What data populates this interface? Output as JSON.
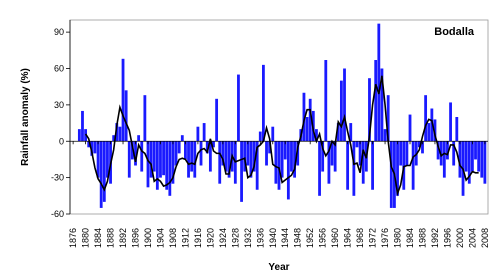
{
  "chart_data": {
    "type": "bar",
    "title": "Bodalla",
    "x_label": "Year",
    "y_label": "Rainfall anomaly (%)",
    "xlim": [
      1875,
      2009
    ],
    "ylim": [
      -60,
      100
    ],
    "xticks": [
      1876,
      1880,
      1884,
      1888,
      1892,
      1896,
      1900,
      1904,
      1908,
      1912,
      1916,
      1920,
      1924,
      1928,
      1932,
      1936,
      1940,
      1944,
      1948,
      1952,
      1956,
      1960,
      1964,
      1968,
      1972,
      1976,
      1980,
      1984,
      1988,
      1992,
      1996,
      2000,
      2004,
      2008
    ],
    "yticks": [
      -60,
      -30,
      0,
      30,
      60,
      90
    ],
    "x": [
      1878,
      1879,
      1880,
      1881,
      1882,
      1883,
      1884,
      1885,
      1886,
      1887,
      1888,
      1889,
      1890,
      1891,
      1892,
      1893,
      1894,
      1895,
      1896,
      1897,
      1898,
      1899,
      1900,
      1901,
      1902,
      1903,
      1904,
      1905,
      1906,
      1907,
      1908,
      1909,
      1910,
      1911,
      1912,
      1913,
      1914,
      1915,
      1916,
      1917,
      1918,
      1919,
      1920,
      1921,
      1922,
      1923,
      1924,
      1925,
      1926,
      1927,
      1928,
      1929,
      1930,
      1931,
      1932,
      1933,
      1934,
      1935,
      1936,
      1937,
      1938,
      1939,
      1940,
      1941,
      1942,
      1943,
      1944,
      1945,
      1946,
      1947,
      1948,
      1949,
      1950,
      1951,
      1952,
      1953,
      1954,
      1955,
      1956,
      1957,
      1958,
      1959,
      1960,
      1961,
      1962,
      1963,
      1964,
      1965,
      1966,
      1967,
      1968,
      1969,
      1970,
      1971,
      1972,
      1973,
      1974,
      1975,
      1976,
      1977,
      1978,
      1979,
      1980,
      1981,
      1982,
      1983,
      1984,
      1985,
      1986,
      1987,
      1988,
      1989,
      1990,
      1991,
      1992,
      1993,
      1994,
      1995,
      1996,
      1997,
      1998,
      1999,
      2000,
      2001,
      2002,
      2003,
      2004,
      2005,
      2006,
      2007,
      2008
    ],
    "series": [
      {
        "type": "bar",
        "color": "#1a1aff",
        "values": [
          10,
          25,
          10,
          -5,
          -12,
          -10,
          -30,
          -55,
          -50,
          -30,
          -35,
          5,
          15,
          12,
          68,
          42,
          -30,
          -15,
          -20,
          5,
          -25,
          38,
          -38,
          -30,
          -25,
          -40,
          -30,
          -28,
          -40,
          -45,
          -35,
          -20,
          -10,
          5,
          -15,
          -30,
          -25,
          -30,
          12,
          -20,
          15,
          -10,
          -25,
          -5,
          35,
          -35,
          -20,
          -25,
          -30,
          -25,
          -35,
          55,
          -50,
          -25,
          -20,
          -30,
          -25,
          -40,
          8,
          63,
          -20,
          -10,
          12,
          -35,
          -40,
          -30,
          -15,
          -48,
          -25,
          -30,
          -20,
          10,
          40,
          20,
          35,
          25,
          10,
          -45,
          -25,
          67,
          -35,
          -20,
          -25,
          15,
          50,
          60,
          -40,
          15,
          -45,
          -5,
          -20,
          -35,
          -25,
          52,
          -40,
          67,
          97,
          60,
          10,
          38,
          -55,
          -55,
          -45,
          -20,
          -40,
          -20,
          22,
          -40,
          -20,
          -5,
          -10,
          38,
          15,
          27,
          18,
          -15,
          -20,
          -30,
          -15,
          32,
          -20,
          20,
          -30,
          -45,
          -25,
          -35,
          -25,
          -15,
          -25,
          -30,
          -35
        ]
      },
      {
        "type": "line",
        "color": "#000000",
        "values": [
          null,
          null,
          6,
          2,
          -9,
          -22,
          -31,
          -35,
          -40,
          -33,
          -19,
          -7,
          13,
          28,
          21,
          15,
          9,
          -4,
          -17,
          -3,
          -8,
          -10,
          -16,
          -19,
          -33,
          -31,
          -33,
          -37,
          -36,
          -34,
          -30,
          -21,
          -15,
          -14,
          -15,
          -19,
          -18,
          -19,
          -10,
          -7,
          -6,
          -9,
          2,
          -8,
          -10,
          -10,
          -15,
          -27,
          -27,
          -12,
          -17,
          -16,
          -15,
          -14,
          -30,
          -28,
          -21,
          -5,
          -3,
          0,
          11,
          2,
          -19,
          -21,
          -22,
          -34,
          -32,
          -30,
          -28,
          -23,
          -5,
          4,
          17,
          26,
          26,
          9,
          0,
          6,
          -6,
          -12,
          -8,
          0,
          -3,
          16,
          12,
          20,
          8,
          -3,
          -19,
          -18,
          -26,
          -7,
          -14,
          4,
          30,
          47,
          39,
          54,
          30,
          0,
          -21,
          -27,
          -43,
          -36,
          -21,
          -20,
          -20,
          -13,
          -11,
          -7,
          4,
          13,
          18,
          17,
          5,
          -4,
          -12,
          -10,
          -11,
          -3,
          -3,
          -9,
          -20,
          -23,
          -32,
          -29,
          -25,
          -26,
          -26,
          null,
          null
        ]
      }
    ]
  }
}
